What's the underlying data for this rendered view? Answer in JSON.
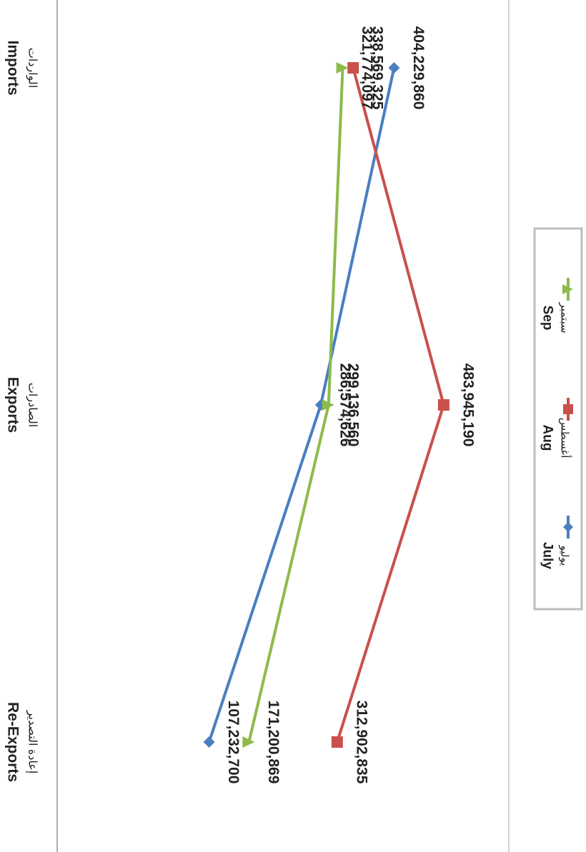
{
  "chart_data": {
    "type": "line",
    "orientation": "rotated-90-clockwise",
    "categories": [
      {
        "en": "Imports",
        "ar": "الواردات"
      },
      {
        "en": "Exports",
        "ar": "الصادرات"
      },
      {
        "en": "Re-Exports",
        "ar": "إعادة التصدير"
      }
    ],
    "series": [
      {
        "name": "July",
        "name_ar": "يوليو",
        "color": "#4a7fc1",
        "marker": "diamond",
        "values": [
          404229860,
          286574626,
          107232700
        ],
        "labels": [
          "404,229,860",
          "286,574,626",
          "107,232,700"
        ]
      },
      {
        "name": "Aug",
        "name_ar": "أغسطس",
        "color": "#c9504b",
        "marker": "square",
        "values": [
          338569325,
          483945190,
          312902835
        ],
        "labels": [
          "338,569,325",
          "483,945,190",
          "312,902,835"
        ]
      },
      {
        "name": "Sep",
        "name_ar": "سبتمبر",
        "color": "#8dbb4a",
        "marker": "triangle",
        "values": [
          321774097,
          299136560,
          171200869
        ],
        "labels": [
          "321,774,097",
          "299,136,560",
          "171,200,869"
        ]
      }
    ],
    "ylim": [
      -100000000,
      600000000
    ],
    "grid": false,
    "legend": "center"
  }
}
